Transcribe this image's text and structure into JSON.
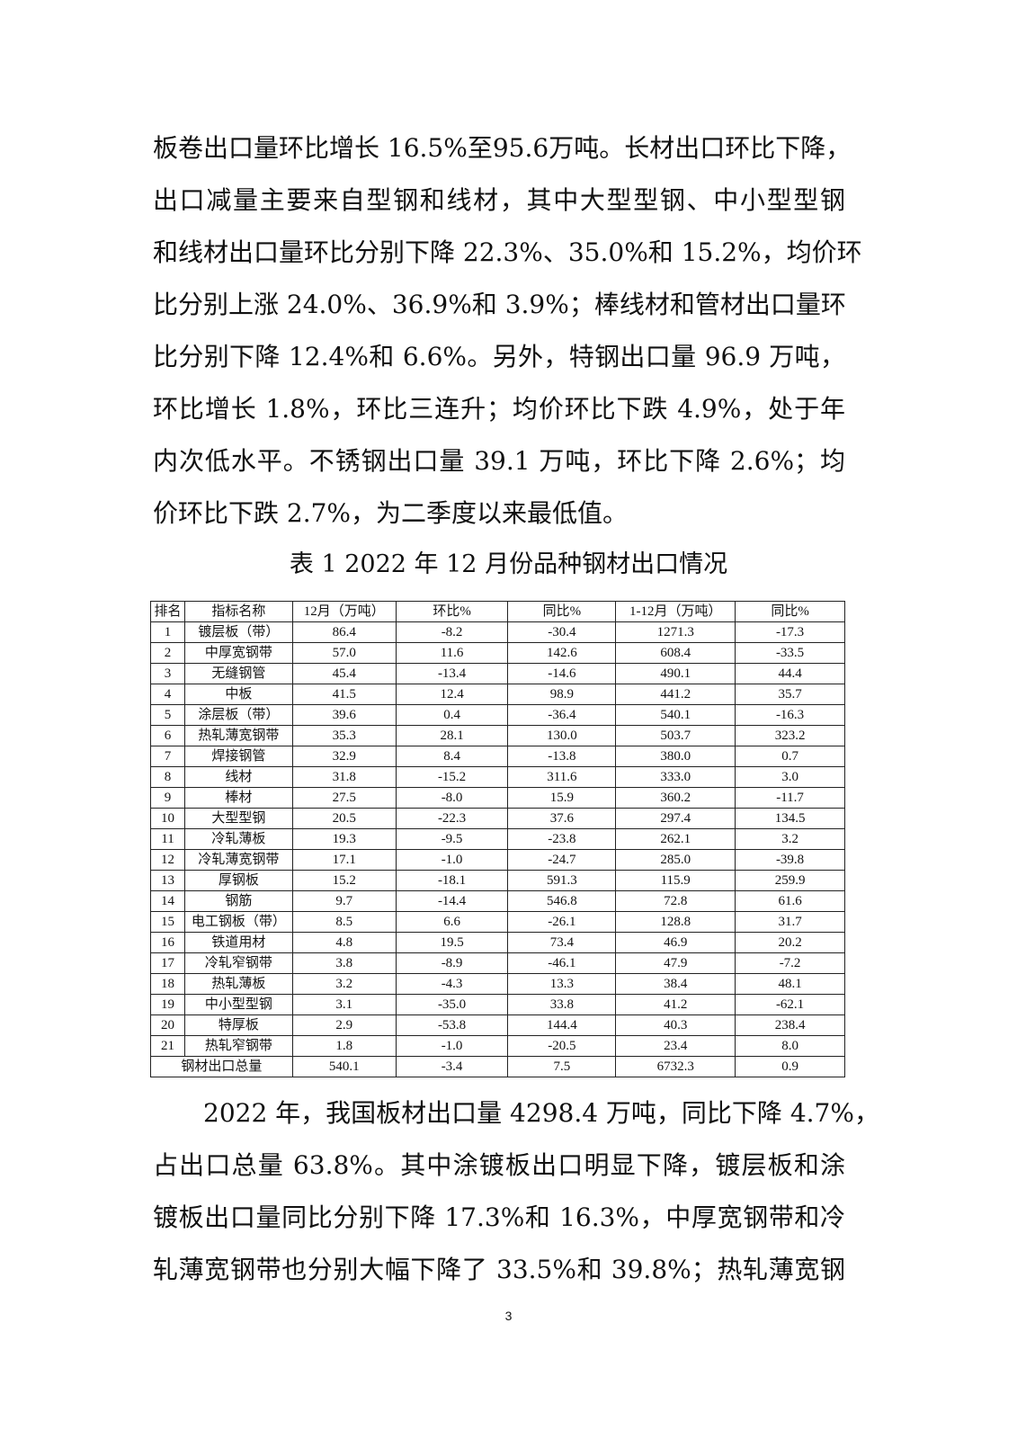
{
  "paragraph1": [
    "板卷出口量环比增长 16.5%至95.6万吨。长材出口环比下降，",
    "出口减量主要来自型钢和线材，其中大型型钢、中小型型钢",
    "和线材出口量环比分别下降 22.3%、35.0%和 15.2%，均价环",
    "比分别上涨 24.0%、36.9%和 3.9%；棒线材和管材出口量环",
    "比分别下降 12.4%和 6.6%。另外，特钢出口量 96.9 万吨，",
    "环比增长 1.8%，环比三连升；均价环比下跌 4.9%，处于年",
    "内次低水平。不锈钢出口量 39.1 万吨，环比下降 2.6%；均",
    "价环比下跌 2.7%，为二季度以来最低值。"
  ],
  "table_caption": "表 1 2022 年 12 月份品种钢材出口情况",
  "table": {
    "headers": [
      "排名",
      "指标名称",
      "12月（万吨）",
      "环比%",
      "同比%",
      "1-12月（万吨）",
      "同比%"
    ],
    "rows": [
      [
        "1",
        "镀层板（带）",
        "86.4",
        "-8.2",
        "-30.4",
        "1271.3",
        "-17.3"
      ],
      [
        "2",
        "中厚宽钢带",
        "57.0",
        "11.6",
        "142.6",
        "608.4",
        "-33.5"
      ],
      [
        "3",
        "无缝钢管",
        "45.4",
        "-13.4",
        "-14.6",
        "490.1",
        "44.4"
      ],
      [
        "4",
        "中板",
        "41.5",
        "12.4",
        "98.9",
        "441.2",
        "35.7"
      ],
      [
        "5",
        "涂层板（带）",
        "39.6",
        "0.4",
        "-36.4",
        "540.1",
        "-16.3"
      ],
      [
        "6",
        "热轧薄宽钢带",
        "35.3",
        "28.1",
        "130.0",
        "503.7",
        "323.2"
      ],
      [
        "7",
        "焊接钢管",
        "32.9",
        "8.4",
        "-13.8",
        "380.0",
        "0.7"
      ],
      [
        "8",
        "线材",
        "31.8",
        "-15.2",
        "311.6",
        "333.0",
        "3.0"
      ],
      [
        "9",
        "棒材",
        "27.5",
        "-8.0",
        "15.9",
        "360.2",
        "-11.7"
      ],
      [
        "10",
        "大型型钢",
        "20.5",
        "-22.3",
        "37.6",
        "297.4",
        "134.5"
      ],
      [
        "11",
        "冷轧薄板",
        "19.3",
        "-9.5",
        "-23.8",
        "262.1",
        "3.2"
      ],
      [
        "12",
        "冷轧薄宽钢带",
        "17.1",
        "-1.0",
        "-24.7",
        "285.0",
        "-39.8"
      ],
      [
        "13",
        "厚钢板",
        "15.2",
        "-18.1",
        "591.3",
        "115.9",
        "259.9"
      ],
      [
        "14",
        "钢筋",
        "9.7",
        "-14.4",
        "546.8",
        "72.8",
        "61.6"
      ],
      [
        "15",
        "电工钢板（带）",
        "8.5",
        "6.6",
        "-26.1",
        "128.8",
        "31.7"
      ],
      [
        "16",
        "铁道用材",
        "4.8",
        "19.5",
        "73.4",
        "46.9",
        "20.2"
      ],
      [
        "17",
        "冷轧窄钢带",
        "3.8",
        "-8.9",
        "-46.1",
        "47.9",
        "-7.2"
      ],
      [
        "18",
        "热轧薄板",
        "3.2",
        "-4.3",
        "13.3",
        "38.4",
        "48.1"
      ],
      [
        "19",
        "中小型型钢",
        "3.1",
        "-35.0",
        "33.8",
        "41.2",
        "-62.1"
      ],
      [
        "20",
        "特厚板",
        "2.9",
        "-53.8",
        "144.4",
        "40.3",
        "238.4"
      ],
      [
        "21",
        "热轧窄钢带",
        "1.8",
        "-1.0",
        "-20.5",
        "23.4",
        "8.0"
      ]
    ],
    "total": [
      "钢材出口总量",
      "540.1",
      "-3.4",
      "7.5",
      "6732.3",
      "0.9"
    ]
  },
  "paragraph2": [
    "　　2022 年，我国板材出口量 4298.4 万吨，同比下降 4.7%，",
    "占出口总量 63.8%。其中涂镀板出口明显下降，镀层板和涂",
    "镀板出口量同比分别下降 17.3%和 16.3%，中厚宽钢带和冷",
    "轧薄宽钢带也分别大幅下降了 33.5%和 39.8%；热轧薄宽钢"
  ],
  "page_number": "3"
}
